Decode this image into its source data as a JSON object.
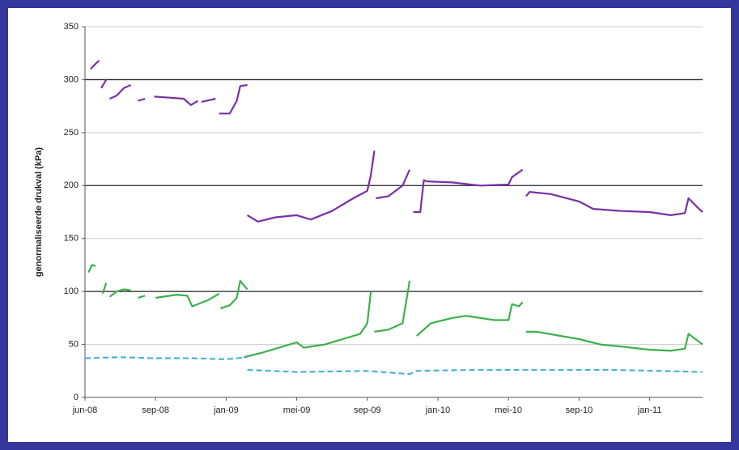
{
  "chart_data": {
    "type": "line",
    "ylabel": "genormaliseerde drukval (kPa)",
    "ylim": [
      0,
      350
    ],
    "yticks": [
      0,
      50,
      100,
      150,
      200,
      250,
      300,
      350
    ],
    "xlim": [
      0,
      8.75
    ],
    "xticks": [
      {
        "value": 0,
        "label": "jun-08"
      },
      {
        "value": 1,
        "label": "sep-08"
      },
      {
        "value": 2,
        "label": "jan-09"
      },
      {
        "value": 3,
        "label": "mei-09"
      },
      {
        "value": 4,
        "label": "sep-09"
      },
      {
        "value": 5,
        "label": "jan-10"
      },
      {
        "value": 6,
        "label": "mei-10"
      },
      {
        "value": 7,
        "label": "sep-10"
      },
      {
        "value": 8,
        "label": "jan-11"
      }
    ],
    "grid": true,
    "series": [
      {
        "color": "#7a2fa8",
        "dashed": false,
        "x": [
          0.08,
          0.15,
          0.2,
          null,
          0.23,
          0.3,
          null,
          0.35,
          0.45,
          0.55,
          0.65,
          null,
          0.75,
          0.85,
          null,
          0.98,
          1.2,
          1.4,
          1.5,
          1.6,
          null,
          1.65,
          1.85,
          null,
          1.9,
          2.05,
          2.15,
          2.2,
          2.3,
          null,
          2.3,
          2.45,
          2.7,
          3.0,
          3.2,
          3.5,
          3.8,
          4.0,
          4.05,
          4.1,
          null,
          4.12,
          4.3,
          4.5,
          4.6,
          null,
          4.65,
          4.75,
          4.8,
          4.85,
          5.2,
          5.6,
          6.0,
          6.05,
          6.2,
          null,
          6.25,
          6.3,
          6.6,
          7.0,
          7.2,
          7.6,
          8.0,
          8.3,
          8.5,
          8.55,
          8.7,
          8.75
        ],
        "values": [
          310,
          315,
          318,
          null,
          292,
          300,
          null,
          282,
          285,
          292,
          295,
          null,
          280,
          282,
          null,
          284,
          283,
          282,
          276,
          280,
          null,
          279,
          282,
          null,
          268,
          268,
          280,
          294,
          295,
          null,
          172,
          166,
          170,
          172,
          168,
          176,
          188,
          195,
          210,
          233,
          null,
          188,
          190,
          200,
          215,
          null,
          175,
          175,
          205,
          204,
          203,
          200,
          201,
          208,
          215,
          null,
          190,
          194,
          192,
          185,
          178,
          176,
          175,
          172,
          174,
          188,
          178,
          175
        ]
      },
      {
        "color": "#3cb04c",
        "dashed": false,
        "x": [
          0.05,
          0.1,
          0.15,
          null,
          0.25,
          0.3,
          null,
          0.35,
          0.45,
          0.55,
          0.65,
          null,
          0.75,
          0.85,
          null,
          1.0,
          1.3,
          1.45,
          1.52,
          1.75,
          1.9,
          null,
          1.92,
          2.05,
          2.15,
          2.2,
          2.3,
          null,
          2.25,
          2.5,
          2.8,
          3.0,
          3.1,
          3.4,
          3.7,
          3.9,
          4.0,
          4.05,
          null,
          4.1,
          4.3,
          4.5,
          4.6,
          null,
          4.7,
          4.9,
          5.2,
          5.4,
          5.8,
          6.0,
          6.05,
          6.15,
          6.2,
          null,
          6.25,
          6.4,
          7.0,
          7.3,
          7.6,
          8.0,
          8.3,
          8.5,
          8.55,
          8.65,
          8.75
        ],
        "values": [
          118,
          125,
          124,
          null,
          98,
          108,
          null,
          95,
          100,
          102,
          101,
          null,
          94,
          96,
          null,
          94,
          97,
          96,
          86,
          92,
          98,
          null,
          84,
          87,
          94,
          110,
          102,
          null,
          38,
          42,
          48,
          52,
          47,
          50,
          56,
          60,
          70,
          100,
          null,
          62,
          64,
          70,
          110,
          null,
          58,
          70,
          75,
          77,
          73,
          73,
          88,
          86,
          90,
          null,
          62,
          62,
          55,
          50,
          48,
          45,
          44,
          46,
          60,
          55,
          50
        ]
      },
      {
        "color": "#4bb3cf",
        "dashed": true,
        "x": [
          0,
          0.5,
          0.95,
          1.5,
          2.0,
          2.3,
          null,
          2.3,
          3.0,
          4.0,
          4.6,
          4.7,
          5.5,
          6.5,
          7.5,
          8.75
        ],
        "values": [
          37,
          38,
          37,
          37,
          36,
          38,
          null,
          26,
          24,
          25,
          22,
          25,
          26,
          26,
          26,
          24
        ]
      }
    ]
  }
}
